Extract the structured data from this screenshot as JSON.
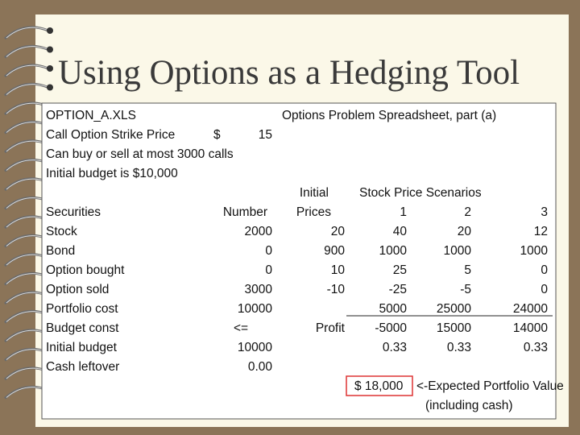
{
  "title": "Using Options as a Hedging Tool",
  "spreadsheet": {
    "rows": [
      [
        "OPTION_A.XLS",
        "Options Problem Spreadsheet, part (a)"
      ],
      [
        "Call Option Strike Price",
        "$",
        "15"
      ],
      [
        "Can buy or sell at most 3000 calls"
      ],
      [
        "Initial budget is $10,000"
      ],
      [
        "Initial",
        "Stock Price Scenarios"
      ],
      [
        "Securities",
        "Number",
        "Prices",
        "1",
        "2",
        "3"
      ],
      [
        "Stock",
        "2000",
        "20",
        "40",
        "20",
        "12"
      ],
      [
        "Bond",
        "0",
        "900",
        "1000",
        "1000",
        "1000"
      ],
      [
        "Option bought",
        "0",
        "10",
        "25",
        "5",
        "0"
      ],
      [
        "Option sold",
        "3000",
        "-10",
        "-25",
        "-5",
        "0"
      ],
      [
        "Portfolio cost",
        "10000",
        "5000",
        "25000",
        "24000"
      ],
      [
        "Budget const",
        "<=",
        "Profit",
        "-5000",
        "15000",
        "14000"
      ],
      [
        "Initial budget",
        "10000",
        "0.33",
        "0.33",
        "0.33"
      ],
      [
        "Cash leftover",
        "0.00"
      ],
      [
        "$ 18,000",
        "<-Expected Portfolio Value"
      ],
      [
        "(including cash)"
      ]
    ]
  }
}
